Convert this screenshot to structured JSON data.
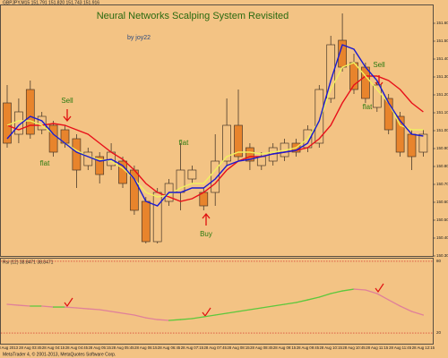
{
  "chart_data": [
    {
      "type": "candlestick",
      "header": "GBPJPY,M15 151.791 151.820 151.743 151.916",
      "title": "Neural Networks Scalping System Revisited",
      "subtitle": "by joy22",
      "annotations": [
        "Sell",
        "flat",
        "flat",
        "Buy",
        "flat",
        "Sell"
      ],
      "categories": [
        "28 Aug 2013",
        null,
        "28 Aug 03:45",
        null,
        "28 Aug 04:15",
        null,
        "28 Aug 04:45",
        null,
        "28 Aug 05:15",
        null,
        "28 Aug 05:45",
        null,
        "28 Aug 06:15",
        null,
        "28 Aug 06:45",
        null,
        "28 Aug 07:15",
        null,
        "28 Aug 07:45",
        null,
        "28 Aug 08:15",
        null,
        "28 Aug 08:45",
        null,
        "28 Aug 09:15",
        null,
        "28 Aug 09:45",
        null,
        "28 Aug 10:15",
        null,
        "28 Aug 10:45",
        null,
        "28 Aug 11:15",
        null,
        "28 Aug 11:45",
        null,
        "28 Aug 12:15"
      ],
      "ohlc": {
        "open": [
          151.155,
          150.98,
          151.23,
          151.005,
          151.03,
          151.005,
          150.955,
          150.805,
          150.855,
          150.805,
          150.83,
          150.78,
          150.605,
          150.38,
          150.605,
          150.655,
          150.73,
          150.655,
          150.655,
          150.83,
          151.03,
          150.905,
          150.805,
          150.83,
          150.855,
          150.93,
          150.905,
          150.93,
          151.18,
          151.505,
          151.38,
          151.355,
          151.13,
          151.18,
          151.08,
          150.98,
          150.88
        ],
        "high": [
          151.255,
          151.18,
          151.28,
          151.105,
          151.055,
          151.03,
          150.98,
          150.905,
          150.88,
          150.93,
          150.855,
          150.805,
          150.63,
          150.68,
          150.73,
          150.93,
          150.805,
          150.68,
          150.98,
          151.18,
          151.23,
          150.93,
          150.88,
          150.93,
          150.955,
          150.955,
          151.03,
          151.255,
          151.53,
          151.655,
          151.43,
          151.38,
          151.28,
          151.205,
          151.105,
          151.005,
          151.005
        ],
        "low": [
          150.905,
          150.93,
          150.955,
          150.98,
          150.855,
          150.905,
          150.68,
          150.78,
          150.705,
          150.78,
          150.68,
          150.53,
          150.37,
          150.37,
          150.58,
          150.555,
          150.705,
          150.555,
          150.58,
          150.805,
          150.83,
          150.78,
          150.78,
          150.805,
          150.83,
          150.855,
          150.88,
          150.905,
          151.155,
          151.33,
          151.205,
          151.155,
          151.105,
          150.98,
          150.855,
          150.78,
          150.855
        ],
        "close": [
          150.93,
          151.105,
          150.98,
          151.08,
          150.88,
          150.93,
          150.78,
          150.88,
          150.755,
          150.88,
          150.705,
          150.555,
          150.38,
          150.655,
          150.705,
          150.78,
          150.78,
          150.58,
          150.83,
          151.03,
          150.855,
          150.83,
          150.855,
          150.905,
          150.93,
          150.88,
          151.005,
          151.23,
          151.48,
          151.355,
          151.23,
          151.18,
          151.255,
          151.005,
          150.88,
          150.855,
          150.98
        ]
      },
      "up_color": "#f3c384",
      "down_color": "#e8842c",
      "wick_color": "#4a3a2a",
      "lines": [
        {
          "color": "#e8101a",
          "values": [
            151.03,
            151.005,
            151.03,
            151.03,
            151.04,
            151.03,
            151.005,
            150.98,
            150.93,
            150.88,
            150.84,
            150.78,
            150.705,
            150.655,
            150.63,
            150.605,
            150.62,
            150.655,
            150.705,
            150.78,
            150.83,
            150.855,
            150.855,
            150.87,
            150.88,
            150.89,
            150.905,
            150.955,
            151.03,
            151.155,
            151.255,
            151.305,
            151.305,
            151.28,
            151.23,
            151.155,
            151.105
          ]
        },
        {
          "color": "#f0f060",
          "values": [
            151.03,
            151.055,
            151.055,
            151.03,
            150.98,
            150.93,
            150.89,
            150.855,
            150.84,
            150.83,
            150.79,
            150.73,
            150.655,
            150.63,
            150.64,
            150.68,
            150.705,
            150.705,
            150.78,
            150.855,
            150.88,
            150.88,
            150.87,
            150.88,
            150.89,
            150.905,
            150.955,
            151.055,
            151.23,
            151.355,
            151.38,
            151.305,
            151.23,
            151.155,
            151.03,
            151.005,
            151.005
          ]
        },
        {
          "color": "#1a1ad0",
          "values": [
            150.955,
            151.03,
            151.08,
            151.055,
            150.98,
            150.93,
            150.88,
            150.855,
            150.83,
            150.84,
            150.805,
            150.73,
            150.605,
            150.58,
            150.655,
            150.655,
            150.68,
            150.68,
            150.73,
            150.805,
            150.83,
            150.84,
            150.855,
            150.87,
            150.88,
            150.89,
            150.93,
            151.055,
            151.28,
            151.48,
            151.455,
            151.355,
            151.28,
            151.155,
            151.055,
            150.98,
            150.97
          ]
        }
      ],
      "ylim": [
        150.28,
        151.68
      ],
      "yticks": [
        {
          "value": 150.3,
          "label": "150.30"
        },
        {
          "value": 150.4,
          "label": "150.40"
        },
        {
          "value": 150.5,
          "label": "150.50"
        },
        {
          "value": 150.6,
          "label": "150.60"
        },
        {
          "value": 150.7,
          "label": "150.70"
        },
        {
          "value": 150.8,
          "label": "150.80"
        },
        {
          "value": 150.9,
          "label": "150.90"
        },
        {
          "value": 151.0,
          "label": "151.00"
        },
        {
          "value": 151.1,
          "label": "151.10"
        },
        {
          "value": 151.2,
          "label": "151.20"
        },
        {
          "value": 151.3,
          "label": "151.30"
        },
        {
          "value": 151.4,
          "label": "151.40"
        },
        {
          "value": 151.5,
          "label": "151.50"
        },
        {
          "value": 151.6,
          "label": "151.60"
        }
      ]
    },
    {
      "type": "line",
      "label": "Rsi (12) 38.8471 38.8471",
      "values": [
        44,
        43.2,
        42.5,
        42.5,
        41.7,
        41.7,
        41,
        40.2,
        39.5,
        38,
        36.5,
        35,
        32.7,
        31.2,
        30.5,
        31.2,
        32,
        33.5,
        35,
        36.5,
        38,
        39.5,
        41,
        42.5,
        44,
        45.5,
        47.7,
        50,
        53,
        55.2,
        56.7,
        56,
        53,
        47.7,
        42.5,
        38,
        35
      ],
      "rise_color": "#5cc83c",
      "fall_color": "#e0809a",
      "level_color": "#d02020",
      "ylim": [
        15,
        85
      ],
      "yticks": [
        20,
        80
      ]
    }
  ],
  "footer": "MetaTrader 4, © 2001-2013, MetaQuotes Software Corp."
}
